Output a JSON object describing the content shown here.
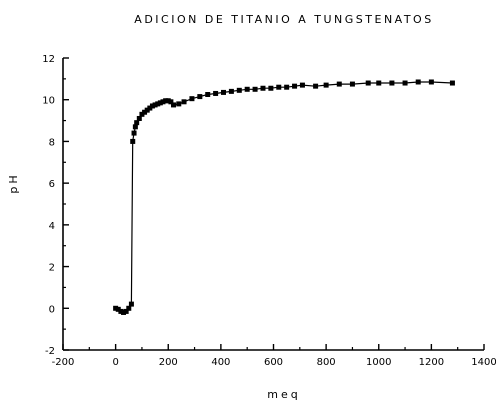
{
  "chart_data": {
    "type": "scatter",
    "title": "ADICION DE TITANIO A TUNGSTENATOS",
    "xlabel": "meq",
    "ylabel": "pH",
    "xlim": [
      -200,
      1400
    ],
    "ylim": [
      -2,
      12
    ],
    "x_ticks": [
      -200,
      0,
      200,
      400,
      600,
      800,
      1000,
      1200,
      1400
    ],
    "y_ticks": [
      -2,
      0,
      2,
      4,
      6,
      8,
      10,
      12
    ],
    "grid": false,
    "marker": "square",
    "line": true,
    "series": [
      {
        "x": [
          0,
          10,
          20,
          30,
          40,
          50,
          60,
          65,
          70,
          75,
          80,
          90,
          100,
          110,
          120,
          130,
          140,
          150,
          160,
          170,
          180,
          190,
          200,
          210,
          220,
          240,
          260,
          290,
          320,
          350,
          380,
          410,
          440,
          470,
          500,
          530,
          560,
          590,
          620,
          650,
          680,
          710,
          760,
          800,
          850,
          900,
          960,
          1000,
          1050,
          1100,
          1150,
          1200,
          1280
        ],
        "y": [
          0.0,
          -0.05,
          -0.15,
          -0.2,
          -0.15,
          0.0,
          0.2,
          8.0,
          8.4,
          8.7,
          8.9,
          9.1,
          9.3,
          9.4,
          9.5,
          9.6,
          9.7,
          9.75,
          9.8,
          9.85,
          9.9,
          9.95,
          9.95,
          9.9,
          9.75,
          9.8,
          9.9,
          10.05,
          10.15,
          10.25,
          10.3,
          10.35,
          10.4,
          10.45,
          10.5,
          10.5,
          10.55,
          10.55,
          10.6,
          10.6,
          10.65,
          10.7,
          10.65,
          10.7,
          10.75,
          10.75,
          10.8,
          10.8,
          10.8,
          10.8,
          10.85,
          10.85,
          10.8
        ]
      }
    ]
  }
}
